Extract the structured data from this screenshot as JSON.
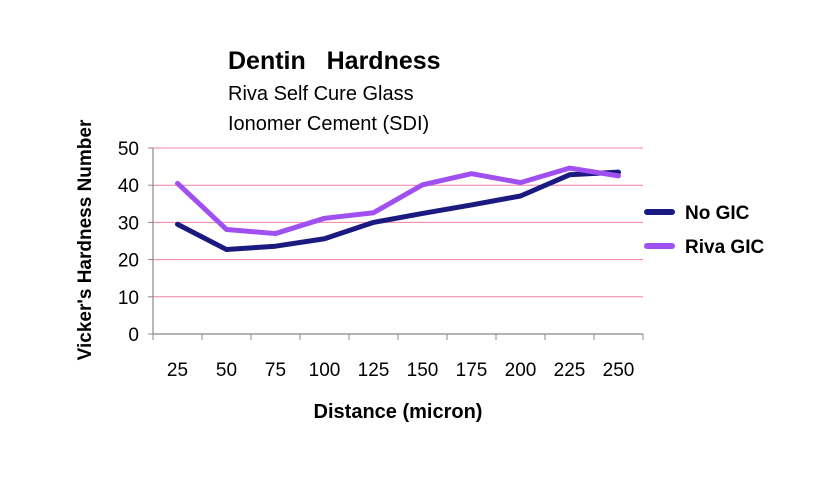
{
  "chart_data": {
    "type": "line",
    "title": "Dentin   Hardness",
    "subtitle_lines": [
      "Riva Self Cure Glass",
      "Ionomer Cement (SDI)"
    ],
    "xlabel": "Distance (micron)",
    "ylabel": "Vicker's Hardness Number",
    "categories": [
      "25",
      "50",
      "75",
      "100",
      "125",
      "150",
      "175",
      "200",
      "225",
      "250"
    ],
    "ylim": [
      0,
      50
    ],
    "yticks": [
      0,
      10,
      20,
      30,
      40,
      50
    ],
    "grid": true,
    "grid_color": "#f080a8",
    "legend_position": "right",
    "series": [
      {
        "name": "No GIC",
        "color": "#1a1a80",
        "values": [
          29.5,
          22.7,
          23.6,
          25.6,
          30.0,
          32.4,
          34.7,
          37.1,
          42.8,
          43.5
        ]
      },
      {
        "name": "Riva GIC",
        "color": "#a050f0",
        "values": [
          40.5,
          28.1,
          27.0,
          31.1,
          32.6,
          40.1,
          43.1,
          40.7,
          44.6,
          42.5
        ]
      }
    ]
  }
}
